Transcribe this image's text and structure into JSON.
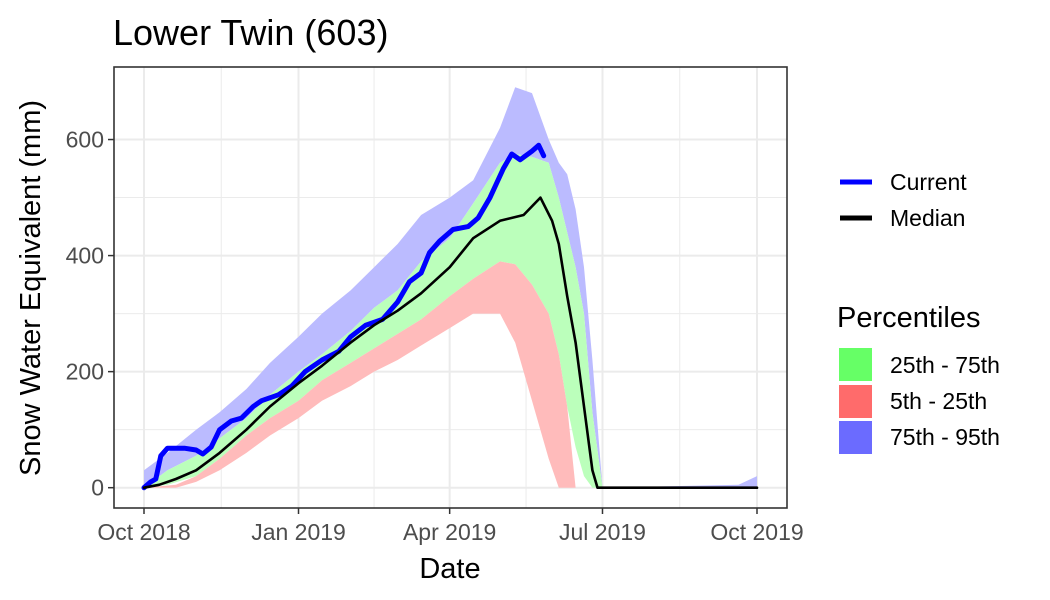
{
  "chart_data": {
    "type": "area",
    "title": "Lower Twin (603)",
    "xlabel": "Date",
    "ylabel": "Snow Water Equivalent (mm)",
    "x_domain": [
      "2018-10-01",
      "2019-10-01"
    ],
    "ylim": [
      -35,
      725
    ],
    "x_ticks": [
      {
        "date": "2018-10-01",
        "label": "Oct 2018"
      },
      {
        "date": "2019-01-01",
        "label": "Jan 2019"
      },
      {
        "date": "2019-04-01",
        "label": "Apr 2019"
      },
      {
        "date": "2019-07-01",
        "label": "Jul 2019"
      },
      {
        "date": "2019-10-01",
        "label": "Oct 2019"
      }
    ],
    "y_ticks": [
      0,
      200,
      400,
      600
    ],
    "grid": true,
    "legend_placement": "right",
    "lines": [
      {
        "name": "Current",
        "color": "#0000ff",
        "points": [
          [
            "2018-10-01",
            0
          ],
          [
            "2018-10-05",
            10
          ],
          [
            "2018-10-08",
            15
          ],
          [
            "2018-10-11",
            55
          ],
          [
            "2018-10-15",
            68
          ],
          [
            "2018-10-25",
            68
          ],
          [
            "2018-11-01",
            65
          ],
          [
            "2018-11-05",
            58
          ],
          [
            "2018-11-10",
            70
          ],
          [
            "2018-11-15",
            100
          ],
          [
            "2018-11-22",
            115
          ],
          [
            "2018-11-28",
            120
          ],
          [
            "2018-12-05",
            140
          ],
          [
            "2018-12-10",
            150
          ],
          [
            "2018-12-20",
            160
          ],
          [
            "2018-12-28",
            175
          ],
          [
            "2019-01-05",
            200
          ],
          [
            "2019-01-15",
            220
          ],
          [
            "2019-01-25",
            235
          ],
          [
            "2019-02-01",
            260
          ],
          [
            "2019-02-10",
            280
          ],
          [
            "2019-02-20",
            290
          ],
          [
            "2019-03-01",
            320
          ],
          [
            "2019-03-08",
            355
          ],
          [
            "2019-03-15",
            370
          ],
          [
            "2019-03-20",
            405
          ],
          [
            "2019-03-26",
            425
          ],
          [
            "2019-04-03",
            445
          ],
          [
            "2019-04-12",
            450
          ],
          [
            "2019-04-18",
            465
          ],
          [
            "2019-04-25",
            500
          ],
          [
            "2019-05-03",
            550
          ],
          [
            "2019-05-08",
            575
          ],
          [
            "2019-05-13",
            565
          ],
          [
            "2019-05-20",
            580
          ],
          [
            "2019-05-24",
            590
          ],
          [
            "2019-05-27",
            572
          ]
        ]
      },
      {
        "name": "Median",
        "color": "#000000",
        "points": [
          [
            "2018-10-01",
            0
          ],
          [
            "2018-10-10",
            5
          ],
          [
            "2018-10-20",
            15
          ],
          [
            "2018-11-01",
            30
          ],
          [
            "2018-11-15",
            60
          ],
          [
            "2018-12-01",
            100
          ],
          [
            "2018-12-15",
            140
          ],
          [
            "2019-01-01",
            180
          ],
          [
            "2019-01-15",
            210
          ],
          [
            "2019-02-01",
            250
          ],
          [
            "2019-02-15",
            280
          ],
          [
            "2019-03-01",
            305
          ],
          [
            "2019-03-15",
            335
          ],
          [
            "2019-04-01",
            380
          ],
          [
            "2019-04-15",
            430
          ],
          [
            "2019-05-01",
            460
          ],
          [
            "2019-05-15",
            470
          ],
          [
            "2019-05-25",
            500
          ],
          [
            "2019-06-01",
            460
          ],
          [
            "2019-06-05",
            420
          ],
          [
            "2019-06-10",
            330
          ],
          [
            "2019-06-15",
            250
          ],
          [
            "2019-06-20",
            140
          ],
          [
            "2019-06-25",
            30
          ],
          [
            "2019-06-28",
            0
          ],
          [
            "2019-10-01",
            0
          ]
        ]
      }
    ],
    "bands": [
      {
        "name": "75th - 95th",
        "color": "#6b6bff",
        "fill": "#bbbbff",
        "x": [
          "2018-10-01",
          "2018-10-15",
          "2018-11-01",
          "2018-11-15",
          "2018-12-01",
          "2018-12-15",
          "2019-01-01",
          "2019-01-15",
          "2019-02-01",
          "2019-02-15",
          "2019-03-01",
          "2019-03-15",
          "2019-04-01",
          "2019-04-15",
          "2019-05-01",
          "2019-05-10",
          "2019-05-20",
          "2019-05-30",
          "2019-06-05",
          "2019-06-10",
          "2019-06-15",
          "2019-06-20",
          "2019-06-25",
          "2019-07-01",
          "2019-09-20",
          "2019-10-01"
        ],
        "upper": [
          30,
          60,
          100,
          130,
          170,
          215,
          260,
          300,
          340,
          380,
          420,
          470,
          500,
          530,
          620,
          690,
          680,
          600,
          560,
          540,
          480,
          380,
          220,
          0,
          5,
          20
        ],
        "lower": [
          0,
          30,
          55,
          85,
          120,
          160,
          200,
          230,
          270,
          310,
          340,
          390,
          430,
          490,
          560,
          575,
          570,
          560,
          500,
          440,
          380,
          300,
          130,
          0,
          0,
          0
        ]
      },
      {
        "name": "25th - 75th",
        "color": "#66ff66",
        "fill": "#bbffbb",
        "x": [
          "2018-10-01",
          "2018-10-15",
          "2018-11-01",
          "2018-11-15",
          "2018-12-01",
          "2018-12-15",
          "2019-01-01",
          "2019-01-15",
          "2019-02-01",
          "2019-02-15",
          "2019-03-01",
          "2019-03-15",
          "2019-04-01",
          "2019-04-15",
          "2019-05-01",
          "2019-05-10",
          "2019-05-20",
          "2019-05-30",
          "2019-06-05",
          "2019-06-10",
          "2019-06-15",
          "2019-06-20",
          "2019-06-25",
          "2019-07-01"
        ],
        "upper": [
          0,
          30,
          55,
          85,
          120,
          160,
          200,
          230,
          270,
          310,
          340,
          390,
          430,
          490,
          560,
          575,
          570,
          560,
          500,
          440,
          380,
          300,
          130,
          0
        ],
        "lower": [
          0,
          5,
          20,
          50,
          90,
          120,
          150,
          185,
          215,
          240,
          265,
          290,
          330,
          360,
          390,
          385,
          350,
          300,
          230,
          140,
          70,
          20,
          0,
          0
        ]
      },
      {
        "name": "5th - 25th",
        "color": "#ff6b6b",
        "fill": "#ffbbbb",
        "x": [
          "2018-10-01",
          "2018-10-20",
          "2018-11-01",
          "2018-11-15",
          "2018-12-01",
          "2018-12-15",
          "2019-01-01",
          "2019-01-15",
          "2019-02-01",
          "2019-02-15",
          "2019-03-01",
          "2019-03-15",
          "2019-04-01",
          "2019-04-15",
          "2019-05-01",
          "2019-05-10",
          "2019-05-20",
          "2019-05-30",
          "2019-06-05",
          "2019-06-10",
          "2019-06-15"
        ],
        "upper": [
          0,
          5,
          20,
          50,
          90,
          120,
          150,
          185,
          215,
          240,
          265,
          290,
          330,
          360,
          390,
          385,
          350,
          300,
          230,
          140,
          0
        ],
        "lower": [
          0,
          0,
          10,
          30,
          60,
          90,
          120,
          150,
          175,
          200,
          220,
          245,
          275,
          300,
          300,
          250,
          150,
          50,
          0,
          0,
          0
        ]
      }
    ]
  },
  "legend": {
    "lines": [
      {
        "label": "Current",
        "color": "#0000ff"
      },
      {
        "label": "Median",
        "color": "#000000"
      }
    ],
    "percentiles_title": "Percentiles",
    "percentiles": [
      {
        "label": "25th - 75th",
        "color": "#66ff66"
      },
      {
        "label": "5th - 25th",
        "color": "#ff6b6b"
      },
      {
        "label": "75th - 95th",
        "color": "#6b6bff"
      }
    ]
  }
}
